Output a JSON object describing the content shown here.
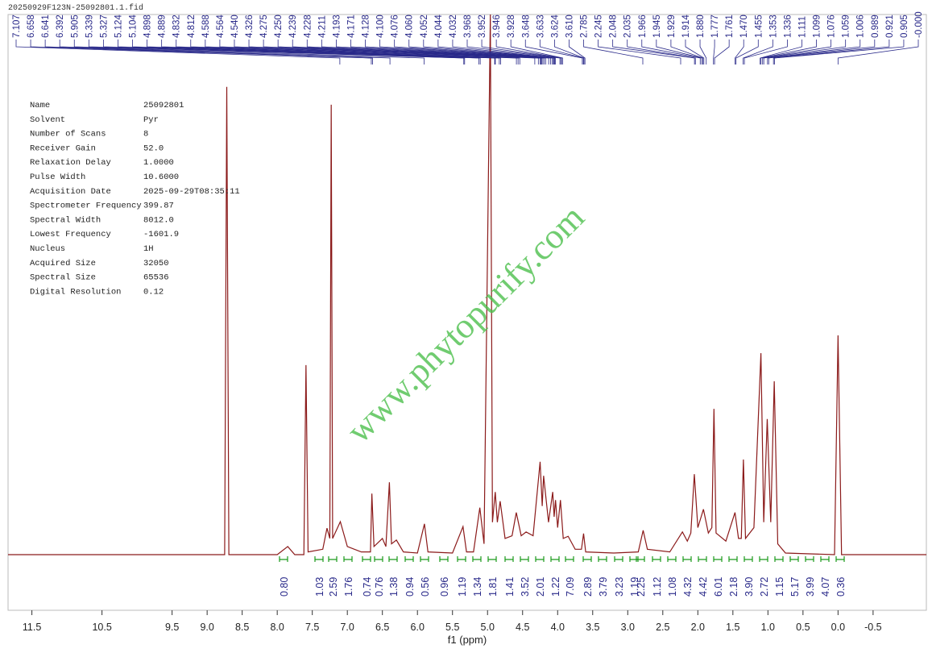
{
  "chart_data": {
    "type": "line",
    "file_name": "20250929F123N-25092801.1.fid",
    "watermark": "www.phytopurify.com",
    "xlabel": "f1 (ppm)",
    "color": "#8b1a1a",
    "xlim": [
      11.84,
      -1.26
    ],
    "ylim": [
      -10.3,
      100
    ],
    "xticks": [
      11.5,
      10.5,
      9.5,
      {
        "value": 9,
        "label": "9.0"
      },
      8.5,
      {
        "value": 8,
        "label": "8.0"
      },
      7.5,
      {
        "value": 7,
        "label": "7.0"
      },
      6.5,
      {
        "value": 6,
        "label": "6.0"
      },
      5.5,
      {
        "value": 5,
        "label": "5.0"
      },
      4.5,
      {
        "value": 4,
        "label": "4.0"
      },
      3.5,
      {
        "value": 3,
        "label": "3.0"
      },
      2.5,
      {
        "value": 2,
        "label": "2.0"
      },
      1.5,
      {
        "value": 1,
        "label": "1.0"
      },
      0.5,
      {
        "value": 0,
        "label": "0.0"
      },
      -0.5
    ],
    "x": [
      11.84,
      8.9,
      8.75,
      8.72,
      8.69,
      8.0,
      7.85,
      7.75,
      7.62,
      7.59,
      7.56,
      7.35,
      7.29,
      7.25,
      7.23,
      7.21,
      7.1,
      7.0,
      6.8,
      6.67,
      6.65,
      6.62,
      6.5,
      6.45,
      6.4,
      6.37,
      6.3,
      6.2,
      6.0,
      5.9,
      5.85,
      5.5,
      5.35,
      5.3,
      5.2,
      5.11,
      5.05,
      4.96,
      4.93,
      4.89,
      4.86,
      4.82,
      4.75,
      4.65,
      4.59,
      4.52,
      4.45,
      4.35,
      4.25,
      4.22,
      4.2,
      4.13,
      4.07,
      4.05,
      4.03,
      4.0,
      3.96,
      3.92,
      3.85,
      3.75,
      3.66,
      3.63,
      3.6,
      3.2,
      2.85,
      2.78,
      2.72,
      2.4,
      2.22,
      2.15,
      2.1,
      2.05,
      2.0,
      1.92,
      1.85,
      1.8,
      1.77,
      1.74,
      1.6,
      1.47,
      1.42,
      1.38,
      1.35,
      1.32,
      1.2,
      1.1,
      1.06,
      1.01,
      0.96,
      0.91,
      0.86,
      0.75,
      0.05,
      0,
      -0.05,
      -1.26
    ],
    "values": [
      0,
      0,
      0,
      86.6,
      0,
      0,
      1.5,
      0,
      0,
      35.1,
      0.5,
      1,
      4.9,
      3,
      83.3,
      3,
      6.1,
      1.5,
      0.5,
      0.5,
      11.3,
      1.5,
      3,
      1.5,
      13.4,
      2,
      2.7,
      0.5,
      0.3,
      5.7,
      0.5,
      0.3,
      5.2,
      0.5,
      0.5,
      8.7,
      2,
      100,
      6,
      11.6,
      6,
      9.9,
      3,
      3.5,
      7.8,
      3.5,
      4.2,
      3.5,
      17.2,
      9,
      14.6,
      6,
      11.6,
      7,
      10.1,
      5,
      10.1,
      3,
      3.4,
      1,
      1,
      3.9,
      0.5,
      0.3,
      0.5,
      4.5,
      1,
      0.5,
      4.2,
      2.5,
      4,
      14.9,
      5,
      8.4,
      4,
      5,
      27,
      4,
      2.5,
      7.8,
      3,
      3,
      17.6,
      3,
      5,
      37.3,
      6,
      25.1,
      6,
      32.1,
      2,
      0.3,
      0,
      40.6,
      0,
      0
    ],
    "peak_labels": [
      7.107,
      6.658,
      6.641,
      6.392,
      5.905,
      5.339,
      5.327,
      5.124,
      5.104,
      4.898,
      4.889,
      4.832,
      4.812,
      4.588,
      4.564,
      {
        "value": 4.54,
        "label": "4.540"
      },
      4.326,
      4.275,
      {
        "value": 4.25,
        "label": "4.250"
      },
      4.239,
      4.228,
      4.211,
      4.193,
      4.171,
      4.128,
      {
        "value": 4.1,
        "label": "4.100"
      },
      4.076,
      {
        "value": 4.06,
        "label": "4.060"
      },
      4.052,
      4.044,
      4.032,
      3.968,
      3.952,
      3.946,
      3.928,
      3.648,
      3.633,
      3.624,
      {
        "value": 3.61,
        "label": "3.610"
      },
      2.785,
      2.245,
      2.048,
      2.035,
      1.966,
      1.945,
      1.929,
      1.914,
      {
        "value": 1.88,
        "label": "1.880"
      },
      1.777,
      1.761,
      {
        "value": 1.47,
        "label": "1.470"
      },
      1.455,
      1.353,
      1.336,
      1.111,
      1.099,
      1.076,
      1.059,
      1.006,
      0.989,
      0.921,
      0.905,
      {
        "value": 0,
        "label": "-0.000"
      }
    ],
    "integrals": [
      {
        "value": 0.8,
        "label": "0.80"
      },
      1.03,
      2.59,
      1.76,
      0.74,
      0.76,
      1.38,
      0.94,
      0.56,
      0.96,
      1.19,
      1.34,
      1.81,
      1.41,
      3.52,
      2.01,
      1.22,
      7.09,
      2.89,
      3.79,
      3.23,
      1.19,
      2.25,
      1.12,
      1.08,
      4.32,
      4.42,
      6.01,
      2.18,
      {
        "value": 3.9,
        "label": "3.90"
      },
      2.72,
      1.15,
      5.17,
      3.99,
      4.07,
      0.36
    ],
    "parameters": [
      [
        "Name",
        "25092801"
      ],
      [
        "Solvent",
        "Pyr"
      ],
      [
        "Number of Scans",
        "8"
      ],
      [
        "Receiver Gain",
        "52.0"
      ],
      [
        "Relaxation Delay",
        "1.0000"
      ],
      [
        "Pulse Width",
        "10.6000"
      ],
      [
        "Acquisition Date",
        "2025-09-29T08:35:11"
      ],
      [
        "Spectrometer Frequency",
        "399.87"
      ],
      [
        "Spectral Width",
        "8012.0"
      ],
      [
        "Lowest Frequency",
        "-1601.9"
      ],
      [
        "Nucleus",
        "1H"
      ],
      [
        "Acquired Size",
        "32050"
      ],
      [
        "Spectral Size",
        "65536"
      ],
      [
        "Digital Resolution",
        "0.12"
      ]
    ]
  }
}
